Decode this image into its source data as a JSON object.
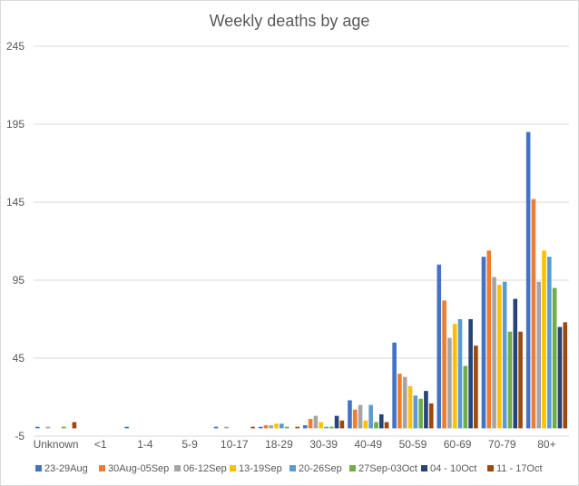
{
  "chart_data": {
    "type": "bar",
    "title": "Weekly deaths by age",
    "xlabel": "",
    "ylabel": "",
    "ylim": [
      -5,
      245
    ],
    "yticks": [
      245,
      195,
      145,
      95,
      45,
      -5
    ],
    "grid": true,
    "legend_position": "bottom",
    "categories": [
      "Unknown",
      "<1",
      "1-4",
      "5-9",
      "10-17",
      "18-29",
      "30-39",
      "40-49",
      "50-59",
      "60-69",
      "70-79",
      "80+"
    ],
    "series": [
      {
        "name": "23-29Aug",
        "color": "#4472C4",
        "values": [
          1,
          0,
          1,
          0,
          1,
          1,
          2,
          18,
          55,
          105,
          110,
          190
        ]
      },
      {
        "name": "30Aug-05Sep",
        "color": "#ED7D31",
        "values": [
          0,
          0,
          0,
          0,
          0,
          2,
          6,
          12,
          35,
          82,
          114,
          147
        ]
      },
      {
        "name": "06-12Sep",
        "color": "#A5A5A5",
        "values": [
          1,
          0,
          0,
          0,
          1,
          2,
          8,
          15,
          33,
          58,
          97,
          94
        ]
      },
      {
        "name": "13-19Sep",
        "color": "#FFC000",
        "values": [
          0,
          0,
          0,
          0,
          0,
          3,
          4,
          5,
          27,
          67,
          92,
          114
        ]
      },
      {
        "name": "20-26Sep",
        "color": "#5B9BD5",
        "values": [
          0,
          0,
          0,
          0,
          0,
          3,
          1,
          15,
          21,
          70,
          94,
          110
        ]
      },
      {
        "name": "27Sep-03Oct",
        "color": "#70AD47",
        "values": [
          1,
          0,
          0,
          0,
          0,
          1,
          1,
          4,
          19,
          40,
          62,
          90
        ]
      },
      {
        "name": "04 - 10Oct",
        "color": "#264478",
        "values": [
          0,
          0,
          0,
          0,
          0,
          0,
          8,
          9,
          24,
          70,
          83,
          65
        ]
      },
      {
        "name": "11 - 17Oct",
        "color": "#9E480E",
        "values": [
          4,
          0,
          0,
          0,
          1,
          1,
          5,
          4,
          16,
          53,
          62,
          68
        ]
      }
    ]
  }
}
